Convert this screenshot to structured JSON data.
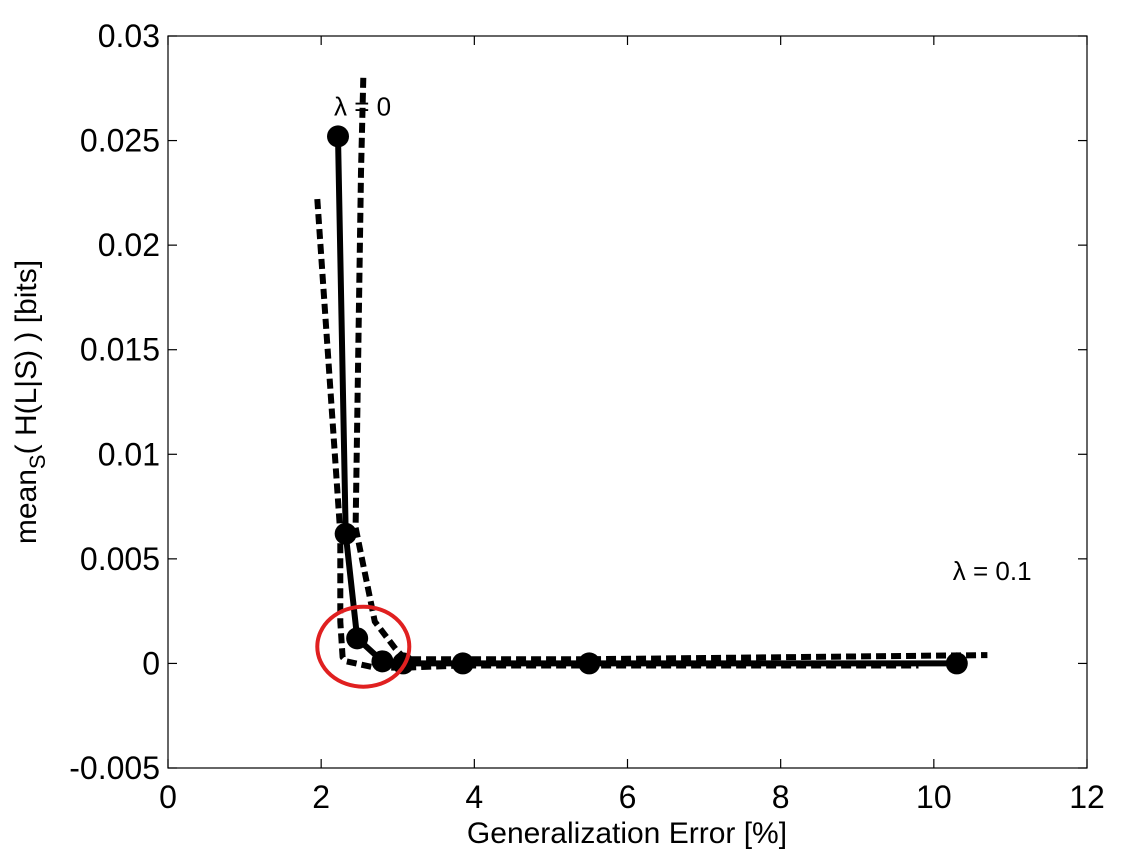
{
  "chart_data": {
    "type": "line",
    "xlabel": "Generalization Error [%]",
    "ylabel_parts": {
      "prefix": "mean",
      "subscript": "S",
      "suffix": "( H(L|S) ) [bits]"
    },
    "xlim": [
      0,
      12
    ],
    "ylim": [
      -0.005,
      0.03
    ],
    "xticks": [
      0,
      2,
      4,
      6,
      8,
      10,
      12
    ],
    "xtick_labels": [
      "0",
      "2",
      "4",
      "6",
      "8",
      "10",
      "12"
    ],
    "yticks": [
      -0.005,
      0,
      0.005,
      0.01,
      0.015,
      0.02,
      0.025,
      0.03
    ],
    "ytick_labels": [
      "-0.005",
      "0",
      "0.005",
      "0.01",
      "0.015",
      "0.02",
      "0.025",
      "0.03"
    ],
    "grid": false,
    "series": [
      {
        "style": "solid-with-markers",
        "color": "#000000",
        "x": [
          2.22,
          2.32,
          2.47,
          2.8,
          3.07,
          3.85,
          5.5,
          10.3
        ],
        "y": [
          0.0252,
          0.0062,
          0.0012,
          0.0001,
          0.0,
          0.0,
          0.0,
          0.0
        ]
      },
      {
        "style": "dashed",
        "color": "#000000",
        "x": [
          2.55,
          2.52,
          2.45,
          2.7,
          2.97,
          3.1,
          3.85,
          5.5,
          10.7
        ],
        "y": [
          0.028,
          0.0235,
          0.0065,
          0.002,
          0.0007,
          0.0002,
          0.0002,
          0.0002,
          0.0004
        ]
      },
      {
        "style": "dashed",
        "color": "#000000",
        "x": [
          1.95,
          2.25,
          2.25,
          2.28,
          2.33,
          2.7,
          3.1,
          3.85,
          5.5,
          9.8
        ],
        "y": [
          0.0222,
          0.0062,
          0.002,
          0.0003,
          0.0001,
          -0.0002,
          -0.0002,
          -0.0001,
          -0.0001,
          -0.0001
        ]
      }
    ],
    "annotations": [
      {
        "text": "λ = 0",
        "x": 2.22,
        "y": 0.0262
      },
      {
        "text": "λ = 0.1",
        "x": 10.3,
        "y": 0.004
      }
    ],
    "highlight": {
      "shape": "circle",
      "color": "#e02020",
      "x": 2.55,
      "y": 0.0008
    }
  }
}
